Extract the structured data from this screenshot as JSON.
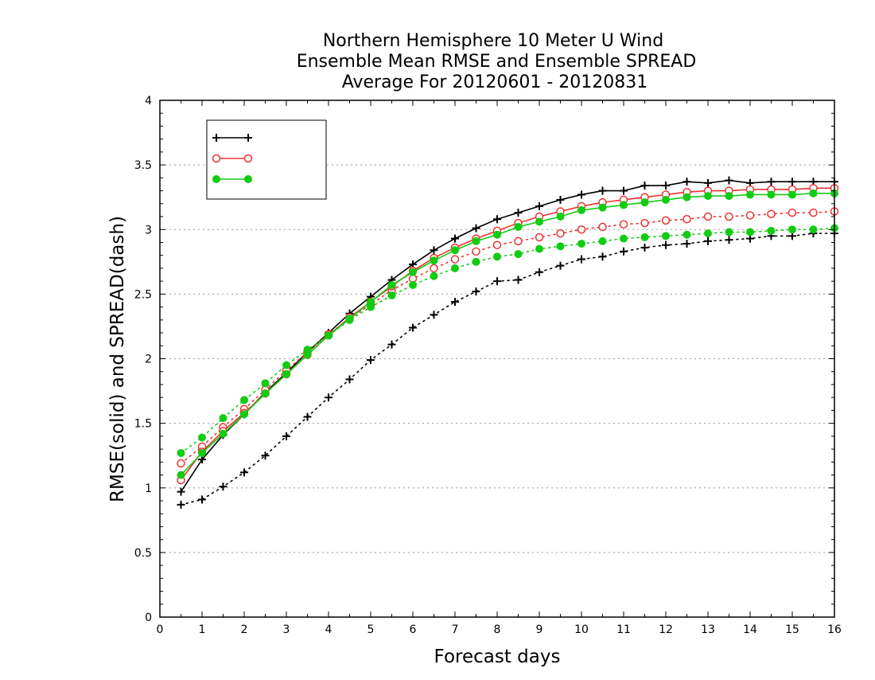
{
  "chart_data": {
    "type": "line",
    "title": [
      "Northern Hemisphere 10 Meter U Wind",
      "Ensemble Mean RMSE and Ensemble SPREAD",
      "Average For 20120601 - 20120831"
    ],
    "xlabel": "Forecast days",
    "ylabel": "RMSE(solid) and SPREAD(dash)",
    "xlim": [
      0,
      16
    ],
    "ylim": [
      0,
      4
    ],
    "xticks": [
      0,
      1,
      2,
      3,
      4,
      5,
      6,
      7,
      8,
      9,
      10,
      11,
      12,
      13,
      14,
      15,
      16
    ],
    "yticks": [
      0,
      0.5,
      1,
      1.5,
      2,
      2.5,
      3,
      3.5,
      4
    ],
    "grid": "horizontal-dotted",
    "legend_placement": "top-left",
    "x": [
      0.5,
      1,
      1.5,
      2,
      2.5,
      3,
      3.5,
      4,
      4.5,
      5,
      5.5,
      6,
      6.5,
      7,
      7.5,
      8,
      8.5,
      9,
      9.5,
      10,
      10.5,
      11,
      11.5,
      12,
      12.5,
      13,
      13.5,
      14,
      14.5,
      15,
      15.5,
      16
    ],
    "series": [
      {
        "color": "#000000",
        "marker": "plus",
        "rmse": [
          0.97,
          1.22,
          1.41,
          1.57,
          1.74,
          1.89,
          2.05,
          2.2,
          2.35,
          2.48,
          2.61,
          2.73,
          2.84,
          2.93,
          3.01,
          3.08,
          3.13,
          3.18,
          3.23,
          3.27,
          3.3,
          3.3,
          3.34,
          3.34,
          3.37,
          3.36,
          3.38,
          3.36,
          3.37,
          3.37,
          3.37,
          3.37
        ],
        "spread": [
          0.87,
          0.91,
          1.01,
          1.12,
          1.25,
          1.4,
          1.55,
          1.7,
          1.84,
          1.99,
          2.11,
          2.24,
          2.34,
          2.44,
          2.52,
          2.6,
          2.61,
          2.67,
          2.72,
          2.77,
          2.79,
          2.83,
          2.86,
          2.88,
          2.89,
          2.91,
          2.92,
          2.93,
          2.95,
          2.95,
          2.97,
          2.97
        ]
      },
      {
        "color": "#ee3333",
        "marker": "open-circle",
        "rmse": [
          1.06,
          1.28,
          1.44,
          1.58,
          1.73,
          1.88,
          2.03,
          2.18,
          2.32,
          2.44,
          2.56,
          2.68,
          2.78,
          2.86,
          2.93,
          2.99,
          3.05,
          3.1,
          3.14,
          3.18,
          3.21,
          3.23,
          3.25,
          3.27,
          3.29,
          3.3,
          3.3,
          3.31,
          3.31,
          3.31,
          3.32,
          3.32
        ],
        "spread": [
          1.19,
          1.32,
          1.47,
          1.61,
          1.76,
          1.91,
          2.05,
          2.19,
          2.31,
          2.42,
          2.53,
          2.62,
          2.7,
          2.77,
          2.83,
          2.88,
          2.91,
          2.94,
          2.97,
          3.0,
          3.02,
          3.04,
          3.05,
          3.07,
          3.08,
          3.1,
          3.1,
          3.11,
          3.12,
          3.13,
          3.13,
          3.14
        ]
      },
      {
        "color": "#11cc11",
        "marker": "filled-circle",
        "rmse": [
          1.1,
          1.27,
          1.42,
          1.57,
          1.73,
          1.88,
          2.03,
          2.18,
          2.31,
          2.44,
          2.57,
          2.67,
          2.76,
          2.84,
          2.91,
          2.96,
          3.02,
          3.06,
          3.1,
          3.15,
          3.17,
          3.19,
          3.21,
          3.23,
          3.25,
          3.26,
          3.26,
          3.27,
          3.27,
          3.27,
          3.28,
          3.28
        ],
        "spread": [
          1.27,
          1.39,
          1.54,
          1.68,
          1.81,
          1.95,
          2.07,
          2.18,
          2.3,
          2.4,
          2.49,
          2.57,
          2.64,
          2.7,
          2.75,
          2.79,
          2.81,
          2.85,
          2.87,
          2.89,
          2.91,
          2.93,
          2.94,
          2.95,
          2.96,
          2.97,
          2.98,
          2.98,
          2.99,
          3.0,
          3.0,
          3.01
        ]
      }
    ]
  }
}
